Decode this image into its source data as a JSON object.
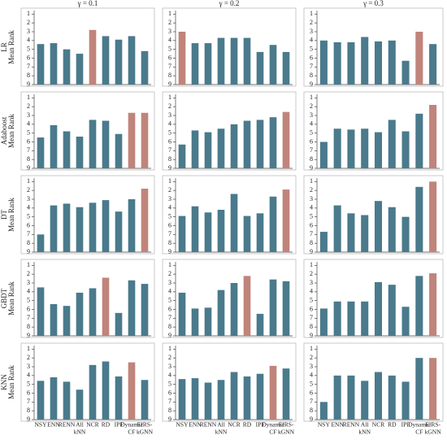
{
  "chart_data": [
    {
      "type": "bar",
      "title": "γ = 0.1",
      "model": "LR",
      "ylabel": "Mean Rank",
      "values": [
        4.4,
        4.3,
        5.0,
        5.5,
        2.8,
        3.5,
        3.9,
        3.5,
        5.2
      ],
      "colors": [
        "#4a7a8c",
        "#4a7a8c",
        "#4a7a8c",
        "#4a7a8c",
        "#c0847b",
        "#4a7a8c",
        "#4a7a8c",
        "#4a7a8c",
        "#4a7a8c"
      ],
      "ylim": [
        9,
        0.6
      ],
      "yticks": [
        1,
        2,
        3,
        4,
        5,
        6,
        7,
        8,
        9
      ]
    },
    {
      "type": "bar",
      "title": "γ = 0.2",
      "values": [
        3.0,
        4.3,
        4.3,
        3.7,
        3.7,
        3.7,
        5.3,
        4.5,
        5.3
      ],
      "colors": [
        "#c0847b",
        "#4a7a8c",
        "#4a7a8c",
        "#4a7a8c",
        "#4a7a8c",
        "#4a7a8c",
        "#4a7a8c",
        "#4a7a8c",
        "#4a7a8c"
      ],
      "ylim": [
        9,
        0.6
      ],
      "yticks": [
        1,
        2,
        3,
        4,
        5,
        6,
        7,
        8,
        9
      ]
    },
    {
      "type": "bar",
      "title": "γ = 0.3",
      "values": [
        4.0,
        4.2,
        4.2,
        3.6,
        4.1,
        4.0,
        6.3,
        3.0,
        4.4
      ],
      "colors": [
        "#4a7a8c",
        "#4a7a8c",
        "#4a7a8c",
        "#4a7a8c",
        "#4a7a8c",
        "#4a7a8c",
        "#4a7a8c",
        "#c0847b",
        "#4a7a8c"
      ],
      "ylim": [
        9,
        0.6
      ],
      "yticks": [
        1,
        2,
        3,
        4,
        5,
        6,
        7,
        8,
        9
      ]
    },
    {
      "type": "bar",
      "model": "Adaboost",
      "ylabel": "Mean Rank",
      "values": [
        5.5,
        4.1,
        4.8,
        5.4,
        3.5,
        3.6,
        5.1,
        2.7,
        2.7
      ],
      "colors": [
        "#4a7a8c",
        "#4a7a8c",
        "#4a7a8c",
        "#4a7a8c",
        "#4a7a8c",
        "#4a7a8c",
        "#4a7a8c",
        "#c0847b",
        "#c0847b"
      ],
      "ylim": [
        9,
        0.6
      ],
      "yticks": [
        1,
        2,
        3,
        4,
        5,
        6,
        7,
        8,
        9
      ]
    },
    {
      "type": "bar",
      "values": [
        6.3,
        4.7,
        4.9,
        4.5,
        4.0,
        3.6,
        3.5,
        3.2,
        2.6
      ],
      "colors": [
        "#4a7a8c",
        "#4a7a8c",
        "#4a7a8c",
        "#4a7a8c",
        "#4a7a8c",
        "#4a7a8c",
        "#4a7a8c",
        "#4a7a8c",
        "#c0847b"
      ],
      "ylim": [
        9,
        0.6
      ],
      "yticks": [
        1,
        2,
        3,
        4,
        5,
        6,
        7,
        8,
        9
      ]
    },
    {
      "type": "bar",
      "values": [
        6.0,
        4.5,
        4.6,
        4.5,
        4.9,
        3.5,
        4.8,
        2.8,
        1.8
      ],
      "colors": [
        "#4a7a8c",
        "#4a7a8c",
        "#4a7a8c",
        "#4a7a8c",
        "#4a7a8c",
        "#4a7a8c",
        "#4a7a8c",
        "#4a7a8c",
        "#c0847b"
      ],
      "ylim": [
        9,
        0.6
      ],
      "yticks": [
        1,
        2,
        3,
        4,
        5,
        6,
        7,
        8,
        9
      ]
    },
    {
      "type": "bar",
      "model": "DT",
      "ylabel": "Mean Rank",
      "values": [
        7.0,
        3.7,
        3.5,
        3.9,
        3.4,
        3.1,
        4.4,
        3.0,
        1.8
      ],
      "colors": [
        "#4a7a8c",
        "#4a7a8c",
        "#4a7a8c",
        "#4a7a8c",
        "#4a7a8c",
        "#4a7a8c",
        "#4a7a8c",
        "#4a7a8c",
        "#c0847b"
      ],
      "ylim": [
        9,
        0.6
      ],
      "yticks": [
        1,
        2,
        3,
        4,
        5,
        6,
        7,
        8,
        9
      ]
    },
    {
      "type": "bar",
      "values": [
        4.9,
        3.8,
        4.5,
        4.2,
        2.4,
        4.9,
        4.6,
        2.7,
        1.9
      ],
      "colors": [
        "#4a7a8c",
        "#4a7a8c",
        "#4a7a8c",
        "#4a7a8c",
        "#4a7a8c",
        "#4a7a8c",
        "#4a7a8c",
        "#4a7a8c",
        "#c0847b"
      ],
      "ylim": [
        9,
        0.6
      ],
      "yticks": [
        1,
        2,
        3,
        4,
        5,
        6,
        7,
        8,
        9
      ]
    },
    {
      "type": "bar",
      "values": [
        6.7,
        3.7,
        4.6,
        4.8,
        3.2,
        3.9,
        5.0,
        1.6,
        1.0
      ],
      "colors": [
        "#4a7a8c",
        "#4a7a8c",
        "#4a7a8c",
        "#4a7a8c",
        "#4a7a8c",
        "#4a7a8c",
        "#4a7a8c",
        "#4a7a8c",
        "#c0847b"
      ],
      "ylim": [
        9,
        0.6
      ],
      "yticks": [
        1,
        2,
        3,
        4,
        5,
        6,
        7,
        8,
        9
      ]
    },
    {
      "type": "bar",
      "model": "GBDT",
      "ylabel": "Mean Rank",
      "values": [
        3.5,
        5.4,
        5.6,
        4.1,
        3.6,
        2.4,
        6.4,
        2.7,
        3.1
      ],
      "colors": [
        "#4a7a8c",
        "#4a7a8c",
        "#4a7a8c",
        "#4a7a8c",
        "#4a7a8c",
        "#c0847b",
        "#4a7a8c",
        "#4a7a8c",
        "#4a7a8c"
      ],
      "ylim": [
        9,
        0.6
      ],
      "yticks": [
        1,
        2,
        3,
        4,
        5,
        6,
        7,
        8,
        9
      ]
    },
    {
      "type": "bar",
      "values": [
        4.1,
        5.9,
        5.8,
        3.8,
        3.0,
        2.2,
        6.5,
        2.6,
        2.8
      ],
      "colors": [
        "#4a7a8c",
        "#4a7a8c",
        "#4a7a8c",
        "#4a7a8c",
        "#4a7a8c",
        "#c0847b",
        "#4a7a8c",
        "#4a7a8c",
        "#4a7a8c"
      ],
      "ylim": [
        9,
        0.6
      ],
      "yticks": [
        1,
        2,
        3,
        4,
        5,
        6,
        7,
        8,
        9
      ]
    },
    {
      "type": "bar",
      "values": [
        5.9,
        5.1,
        5.1,
        5.1,
        2.9,
        3.2,
        5.7,
        2.2,
        1.9
      ],
      "colors": [
        "#4a7a8c",
        "#4a7a8c",
        "#4a7a8c",
        "#4a7a8c",
        "#4a7a8c",
        "#4a7a8c",
        "#4a7a8c",
        "#4a7a8c",
        "#c0847b"
      ],
      "ylim": [
        9,
        0.6
      ],
      "yticks": [
        1,
        2,
        3,
        4,
        5,
        6,
        7,
        8,
        9
      ]
    },
    {
      "type": "bar",
      "model": "KNN",
      "ylabel": "Mean Rank",
      "categories": [
        [
          "NSY"
        ],
        [
          "ENN"
        ],
        [
          "RENN"
        ],
        [
          "All",
          "kNN"
        ],
        [
          "NCR"
        ],
        [
          "RD"
        ],
        [
          "IPF"
        ],
        [
          "Dynamic",
          "CF"
        ],
        [
          "EIRS-",
          "kGNN"
        ]
      ],
      "values": [
        4.6,
        4.2,
        4.7,
        5.6,
        2.8,
        2.4,
        4.1,
        2.5,
        4.5
      ],
      "colors": [
        "#4a7a8c",
        "#4a7a8c",
        "#4a7a8c",
        "#4a7a8c",
        "#4a7a8c",
        "#4a7a8c",
        "#4a7a8c",
        "#c0847b",
        "#4a7a8c"
      ],
      "ylim": [
        9,
        0.6
      ],
      "yticks": [
        1,
        2,
        3,
        4,
        5,
        6,
        7,
        8,
        9
      ]
    },
    {
      "type": "bar",
      "categories": [
        [
          "NSY"
        ],
        [
          "ENN"
        ],
        [
          "RENN"
        ],
        [
          "All",
          "kNN"
        ],
        [
          "NCR"
        ],
        [
          "RD"
        ],
        [
          "IPF"
        ],
        [
          "Dynamic",
          "CF"
        ],
        [
          "EIRS-",
          "kGNN"
        ]
      ],
      "values": [
        4.4,
        4.3,
        4.8,
        4.5,
        3.6,
        4.1,
        3.8,
        2.9,
        3.2
      ],
      "colors": [
        "#4a7a8c",
        "#4a7a8c",
        "#4a7a8c",
        "#4a7a8c",
        "#4a7a8c",
        "#4a7a8c",
        "#4a7a8c",
        "#c0847b",
        "#4a7a8c"
      ],
      "ylim": [
        9,
        0.6
      ],
      "yticks": [
        1,
        2,
        3,
        4,
        5,
        6,
        7,
        8,
        9
      ]
    },
    {
      "type": "bar",
      "categories": [
        [
          "NSY"
        ],
        [
          "ENN"
        ],
        [
          "RENN"
        ],
        [
          "All",
          "kNN"
        ],
        [
          "NCR"
        ],
        [
          "RD"
        ],
        [
          "IPF"
        ],
        [
          "Dynamic",
          "CF"
        ],
        [
          "EIRS-",
          "kGNN"
        ]
      ],
      "values": [
        7.0,
        4.0,
        4.0,
        4.6,
        3.6,
        4.0,
        4.7,
        2.0,
        2.0
      ],
      "colors": [
        "#4a7a8c",
        "#4a7a8c",
        "#4a7a8c",
        "#4a7a8c",
        "#4a7a8c",
        "#4a7a8c",
        "#4a7a8c",
        "#4a7a8c",
        "#c0847b"
      ],
      "ylim": [
        9,
        0.6
      ],
      "yticks": [
        1,
        2,
        3,
        4,
        5,
        6,
        7,
        8,
        9
      ]
    }
  ]
}
